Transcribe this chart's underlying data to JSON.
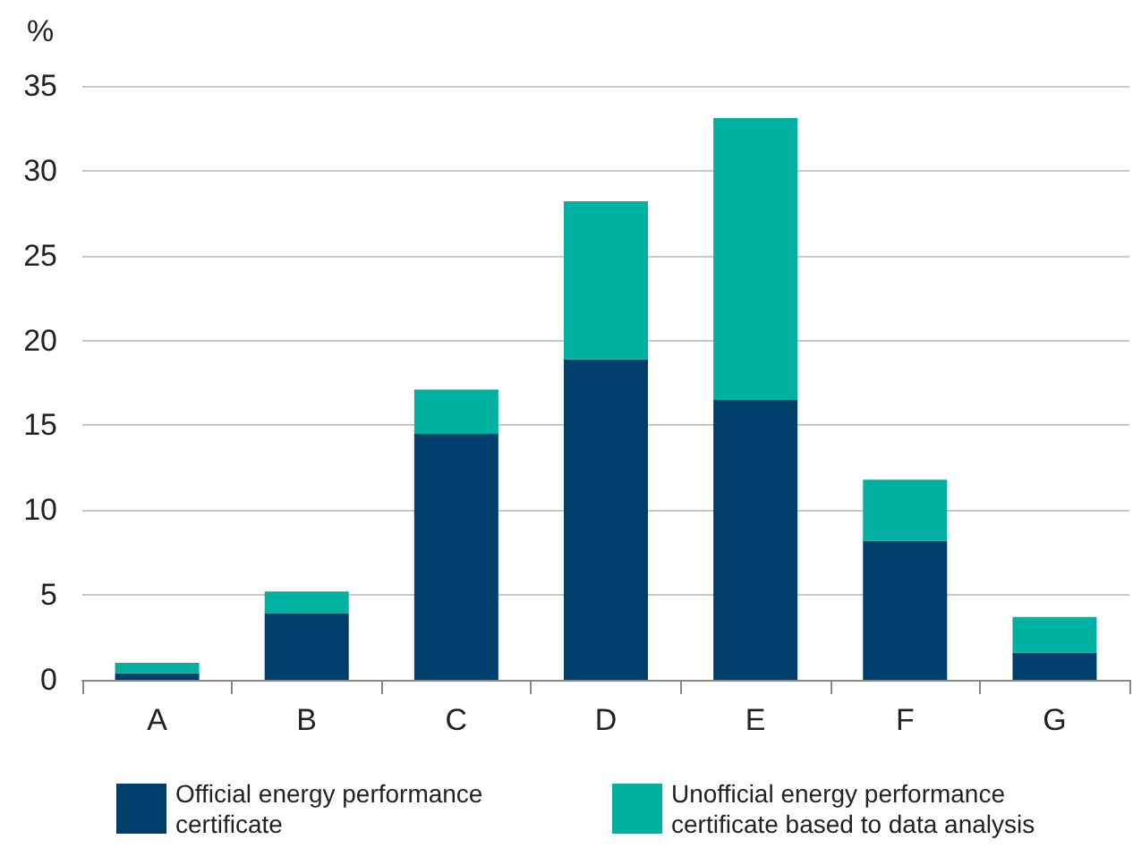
{
  "chart_data": {
    "type": "bar",
    "stacked": true,
    "ylabel": "%",
    "categories": [
      "A",
      "B",
      "C",
      "D",
      "E",
      "F",
      "G"
    ],
    "series": [
      {
        "name": "Official energy performance certificate",
        "color": "#003f6b",
        "values": [
          0.4,
          3.9,
          14.5,
          18.9,
          16.5,
          8.2,
          1.6
        ]
      },
      {
        "name": "Unofficial energy performance certificate based to data analysis",
        "color": "#00b0a0",
        "values": [
          0.6,
          1.3,
          2.6,
          9.3,
          16.6,
          3.6,
          2.1
        ]
      }
    ],
    "ylim": [
      0,
      35
    ],
    "yticks": [
      0,
      5,
      10,
      15,
      20,
      25,
      30,
      35
    ],
    "grid": "y",
    "legend": "bottom"
  }
}
